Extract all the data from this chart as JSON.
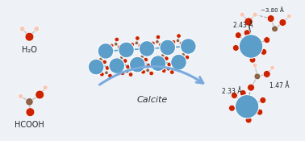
{
  "bg_color": "#eef2f7",
  "arrow_color": "#7aaadd",
  "calcite_text": "Calcite",
  "calcite_text_color": "#333333",
  "h2o_label": "H₂O",
  "hcooh_label": "HCOOH",
  "ca_color": "#5b9ec9",
  "o_color": "#cc2200",
  "c_color": "#8b6347",
  "h_color": "#f5c8b8",
  "ann_color": "#222222",
  "dist1": "2.43 Å",
  "dist2": "~3.80 Å",
  "dist3": "2.33 Å",
  "dist4": "1.47 Å"
}
